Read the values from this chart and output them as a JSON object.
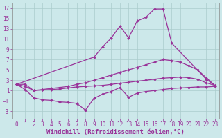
{
  "background_color": "#cce8ea",
  "grid_color": "#aacccc",
  "line_color": "#993399",
  "marker": "D",
  "markersize": 2.0,
  "linewidth": 0.9,
  "xlabel": "Windchill (Refroidissement éolien,°C)",
  "xlabel_fontsize": 6.5,
  "xticks": [
    0,
    1,
    2,
    3,
    4,
    5,
    6,
    7,
    8,
    9,
    10,
    11,
    12,
    13,
    14,
    15,
    16,
    17,
    18,
    19,
    20,
    21,
    22,
    23
  ],
  "yticks": [
    -3,
    -1,
    1,
    3,
    5,
    7,
    9,
    11,
    13,
    15,
    17
  ],
  "ylim": [
    -4.5,
    18
  ],
  "xlim": [
    -0.5,
    23.5
  ],
  "tick_fontsize": 5.5,
  "lines": [
    {
      "x": [
        0,
        9,
        10,
        11,
        12,
        13,
        14,
        15,
        16,
        17,
        18,
        22,
        23
      ],
      "y": [
        2.2,
        7.5,
        9.5,
        11.2,
        13.5,
        11.2,
        14.5,
        15.2,
        16.8,
        16.8,
        10.2,
        3.2,
        2.0
      ]
    },
    {
      "x": [
        0,
        1,
        2,
        3,
        4,
        5,
        6,
        7,
        8,
        9,
        10,
        11,
        12,
        13,
        14,
        15,
        16,
        17,
        18,
        19,
        20,
        21,
        22,
        23
      ],
      "y": [
        2.2,
        2.2,
        1.0,
        1.2,
        1.4,
        1.6,
        1.8,
        2.2,
        2.5,
        3.0,
        3.5,
        4.0,
        4.5,
        5.0,
        5.5,
        6.0,
        6.5,
        7.0,
        6.8,
        6.5,
        5.8,
        5.0,
        3.5,
        2.0
      ]
    },
    {
      "x": [
        0,
        1,
        2,
        3,
        4,
        5,
        6,
        7,
        8,
        9,
        10,
        11,
        12,
        13,
        14,
        15,
        16,
        17,
        18,
        19,
        20,
        21,
        22,
        23
      ],
      "y": [
        2.2,
        1.8,
        1.0,
        1.1,
        1.2,
        1.3,
        1.5,
        1.7,
        1.8,
        1.9,
        2.0,
        2.2,
        2.4,
        2.6,
        2.8,
        3.0,
        3.2,
        3.4,
        3.5,
        3.6,
        3.5,
        3.2,
        2.5,
        2.0
      ]
    },
    {
      "x": [
        0,
        1,
        2,
        3,
        4,
        5,
        6,
        7,
        8,
        9,
        10,
        11,
        12,
        13,
        14,
        15,
        16,
        17,
        18,
        19,
        20,
        21,
        22,
        23
      ],
      "y": [
        2.2,
        1.2,
        -0.4,
        -0.8,
        -0.9,
        -1.2,
        -1.3,
        -1.5,
        -2.8,
        -0.5,
        0.3,
        0.8,
        1.6,
        -0.3,
        0.5,
        0.8,
        1.0,
        1.2,
        1.4,
        1.5,
        1.6,
        1.7,
        1.7,
        1.8
      ]
    }
  ]
}
